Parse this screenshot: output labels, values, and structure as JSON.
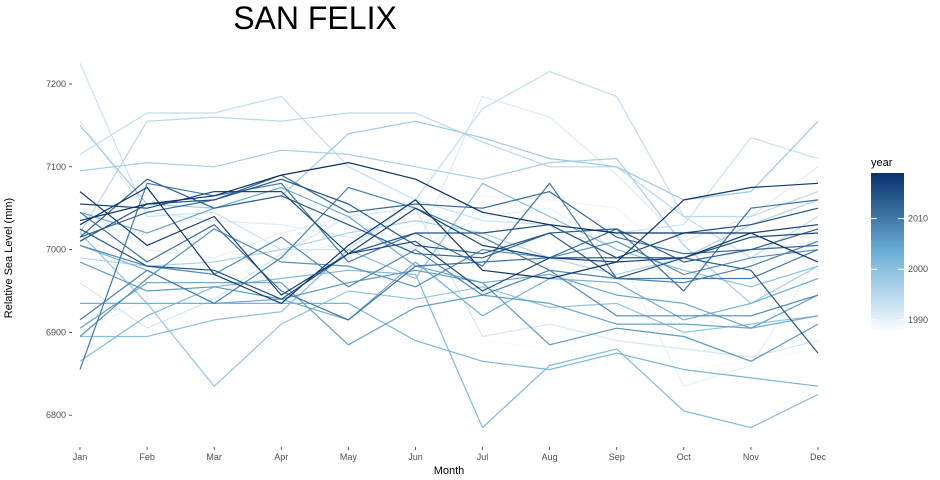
{
  "chart_data": {
    "type": "line",
    "title": "SAN FELIX",
    "xlabel": "Month",
    "ylabel": "Relative Sea Level (mm)",
    "categories": [
      "Jan",
      "Feb",
      "Mar",
      "Apr",
      "May",
      "Jun",
      "Jul",
      "Aug",
      "Sep",
      "Oct",
      "Nov",
      "Dec"
    ],
    "ylim": [
      6770,
      7235
    ],
    "yticks": [
      6800,
      6900,
      7000,
      7100,
      7200
    ],
    "grid": false,
    "legend": {
      "title": "year",
      "position": "right",
      "type": "colorbar",
      "range": [
        1988,
        2019
      ],
      "ticks": [
        1990,
        2000,
        2010
      ],
      "low_color": "#f7fbff",
      "high_color": "#08306b"
    },
    "series": [
      {
        "year": 1988,
        "values": [
          6980,
          6985,
          6975,
          6970,
          6985,
          7005,
          6890,
          6880,
          6870,
          6855,
          6865,
          6880
        ]
      },
      {
        "year": 1989,
        "values": [
          6900,
          6940,
          6960,
          6990,
          7010,
          7030,
          7065,
          7060,
          7050,
          6980,
          7000,
          7010
        ]
      },
      {
        "year": 1990,
        "values": [
          7050,
          7000,
          6990,
          7020,
          7040,
          7000,
          7040,
          7050,
          7000,
          6835,
          6860,
          6990
        ]
      },
      {
        "year": 1991,
        "values": [
          7155,
          7045,
          7035,
          7030,
          7015,
          7000,
          7185,
          7160,
          7090,
          7010,
          7040,
          7100
        ]
      },
      {
        "year": 1992,
        "values": [
          6960,
          6905,
          6940,
          6995,
          7040,
          7050,
          6895,
          6910,
          6890,
          6880,
          6870,
          6890
        ]
      },
      {
        "year": 1993,
        "values": [
          7225,
          7040,
          7045,
          7000,
          7000,
          7060,
          7035,
          7030,
          7020,
          7030,
          7135,
          7110
        ]
      },
      {
        "year": 1994,
        "values": [
          7115,
          7165,
          7165,
          7185,
          7100,
          7060,
          7170,
          7215,
          7185,
          7040,
          6990,
          7040
        ]
      },
      {
        "year": 1995,
        "values": [
          7020,
          7155,
          7160,
          7155,
          7165,
          7165,
          7130,
          7100,
          7100,
          7040,
          7040,
          7070
        ]
      },
      {
        "year": 1996,
        "values": [
          6990,
          6980,
          6985,
          7000,
          7020,
          7035,
          7020,
          6990,
          6970,
          6990,
          7030,
          7060
        ]
      },
      {
        "year": 1997,
        "values": [
          7095,
          7105,
          7100,
          7120,
          7115,
          7100,
          7085,
          7105,
          7110,
          7005,
          6935,
          6980
        ]
      },
      {
        "year": 1998,
        "values": [
          7150,
          7055,
          7050,
          7065,
          7140,
          7155,
          7135,
          7110,
          7100,
          7060,
          7070,
          7155
        ]
      },
      {
        "year": 1999,
        "values": [
          7020,
          6935,
          6835,
          6910,
          6950,
          6940,
          6955,
          6930,
          6935,
          6900,
          6910,
          6920
        ]
      },
      {
        "year": 2000,
        "values": [
          6895,
          6895,
          6915,
          6925,
          7000,
          6965,
          7080,
          7040,
          7000,
          6975,
          6955,
          6980
        ]
      },
      {
        "year": 2001,
        "values": [
          6865,
          6920,
          6955,
          6965,
          6975,
          6970,
          6785,
          6860,
          6880,
          6805,
          6785,
          6825
        ]
      },
      {
        "year": 2002,
        "values": [
          7005,
          6975,
          6935,
          6935,
          6935,
          6890,
          6865,
          6855,
          6875,
          6855,
          6845,
          6835
        ]
      },
      {
        "year": 2003,
        "values": [
          6935,
          6935,
          6935,
          6940,
          6915,
          6985,
          6920,
          6965,
          6960,
          6915,
          6935,
          6965
        ]
      },
      {
        "year": 2004,
        "values": [
          7045,
          7020,
          7050,
          7075,
          7040,
          6980,
          6960,
          6970,
          6945,
          6935,
          6905,
          6920
        ]
      },
      {
        "year": 2005,
        "values": [
          6905,
          6960,
          6960,
          6960,
          6885,
          6930,
          6945,
          6935,
          6910,
          6910,
          6905,
          6945
        ]
      },
      {
        "year": 2006,
        "values": [
          6985,
          6950,
          6955,
          6940,
          6960,
          6975,
          6960,
          6885,
          6905,
          6895,
          6865,
          6910
        ]
      },
      {
        "year": 2007,
        "values": [
          6895,
          6965,
          7025,
          6985,
          6980,
          6955,
          7000,
          6990,
          7010,
          6970,
          6990,
          7000
        ]
      },
      {
        "year": 2008,
        "values": [
          7005,
          6980,
          6970,
          7015,
          6955,
          7000,
          6945,
          6975,
          6920,
          6920,
          6920,
          6945
        ]
      },
      {
        "year": 2009,
        "values": [
          6915,
          6975,
          6935,
          6990,
          7075,
          7050,
          7015,
          6975,
          6965,
          6960,
          6980,
          7010
        ]
      },
      {
        "year": 2010,
        "values": [
          6855,
          7080,
          7065,
          7080,
          6985,
          7020,
          6980,
          7080,
          6965,
          6965,
          6965,
          7000
        ]
      },
      {
        "year": 2011,
        "values": [
          7045,
          6985,
          7030,
          6950,
          6915,
          6980,
          6985,
          6990,
          7025,
          6950,
          7050,
          7060
        ]
      },
      {
        "year": 2012,
        "values": [
          7015,
          7045,
          7060,
          7090,
          7045,
          7055,
          7050,
          7070,
          7015,
          6995,
          7000,
          7005
        ]
      },
      {
        "year": 2013,
        "values": [
          7015,
          7085,
          7050,
          7065,
          7030,
          6995,
          6990,
          7020,
          7025,
          6985,
          7000,
          7025
        ]
      },
      {
        "year": 2014,
        "values": [
          7010,
          7055,
          7060,
          7085,
          7055,
          7005,
          6995,
          7020,
          6965,
          6990,
          6975,
          6875
        ]
      },
      {
        "year": 2015,
        "values": [
          7025,
          6980,
          6975,
          6940,
          6995,
          7020,
          7020,
          7030,
          6990,
          7020,
          7030,
          7050
        ]
      },
      {
        "year": 2016,
        "values": [
          7055,
          7050,
          7070,
          7070,
          6995,
          7010,
          6950,
          6990,
          6990,
          6990,
          7015,
          7020
        ]
      },
      {
        "year": 2017,
        "values": [
          7070,
          7005,
          7040,
          6945,
          6995,
          7050,
          7005,
          6990,
          6985,
          6990,
          7020,
          7030
        ]
      },
      {
        "year": 2018,
        "values": [
          7030,
          7075,
          6970,
          6935,
          7005,
          7060,
          6975,
          6965,
          6985,
          7060,
          7075,
          7080
        ]
      },
      {
        "year": 2019,
        "values": [
          7035,
          7055,
          7065,
          7090,
          7105,
          7085,
          7045,
          7030,
          7020,
          7020,
          7020,
          6985
        ]
      }
    ]
  }
}
